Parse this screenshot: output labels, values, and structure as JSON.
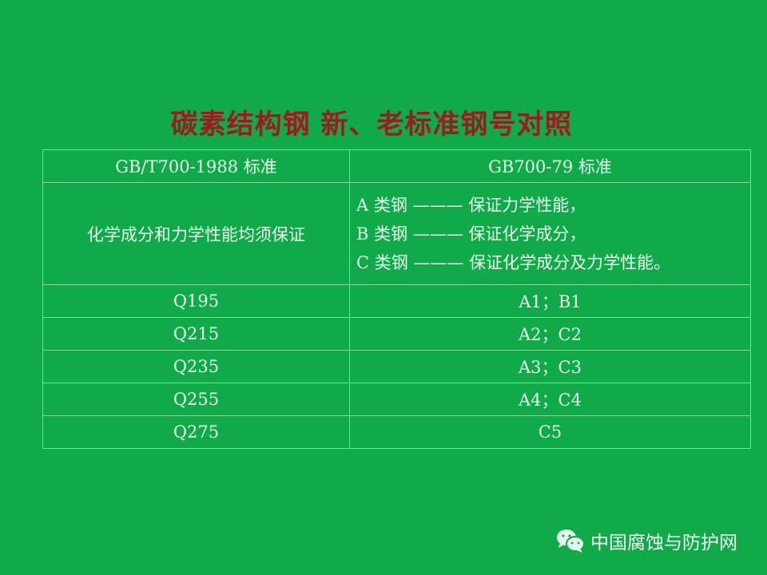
{
  "title": "碳素结构钢 新、老标准钢号对照",
  "table": {
    "headers": [
      "GB/T700-1988 标准",
      "GB700-79 标准"
    ],
    "requirement_row": {
      "new": "化学成分和力学性能均须保证",
      "old": [
        "A 类钢 ——— 保证力学性能，",
        "B 类钢 ——— 保证化学成分，",
        "C 类钢 ——— 保证化学成分及力学性能。"
      ]
    },
    "rows": [
      [
        "Q195",
        "A1；B1"
      ],
      [
        "Q215",
        "A2；C2"
      ],
      [
        "Q235",
        "A3；C3"
      ],
      [
        "Q255",
        "A4；C4"
      ],
      [
        "Q275",
        "C5"
      ]
    ]
  },
  "watermark": {
    "icon": "wechat-icon",
    "text": "中国腐蚀与防护网"
  },
  "colors": {
    "background": "#10aa48",
    "title": "#a01820"
  }
}
